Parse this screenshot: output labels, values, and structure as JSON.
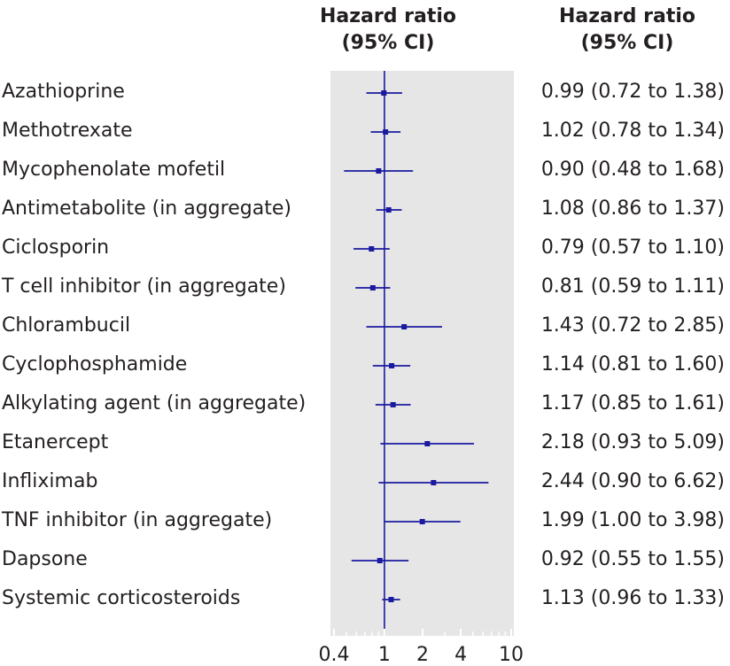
{
  "header": {
    "plot_title_line1": "Hazard ratio",
    "plot_title_line2": "(95% CI)",
    "ci_title_line1": "Hazard ratio",
    "ci_title_line2": "(95% CI)"
  },
  "colors": {
    "marker": "#1a1aa0",
    "panel": "#e6e6e6",
    "text": "#231f20"
  },
  "chart_data": {
    "type": "forest",
    "xscale": "log",
    "xlim": [
      0.4,
      10
    ],
    "reference_line": 1,
    "xticks": [
      0.4,
      1,
      2,
      4,
      10
    ],
    "xtick_labels": [
      "0.4",
      "1",
      "2",
      "4",
      "10"
    ],
    "rows": [
      {
        "label": "Azathioprine",
        "hr": 0.99,
        "lo": 0.72,
        "hi": 1.38,
        "ci_text": "0.99 (0.72 to 1.38)"
      },
      {
        "label": "Methotrexate",
        "hr": 1.02,
        "lo": 0.78,
        "hi": 1.34,
        "ci_text": "1.02 (0.78 to 1.34)"
      },
      {
        "label": "Mycophenolate mofetil",
        "hr": 0.9,
        "lo": 0.48,
        "hi": 1.68,
        "ci_text": "0.90 (0.48 to 1.68)"
      },
      {
        "label": "Antimetabolite (in aggregate)",
        "hr": 1.08,
        "lo": 0.86,
        "hi": 1.37,
        "ci_text": "1.08 (0.86 to 1.37)"
      },
      {
        "label": "Ciclosporin",
        "hr": 0.79,
        "lo": 0.57,
        "hi": 1.1,
        "ci_text": "0.79 (0.57 to 1.10)"
      },
      {
        "label": "T cell inhibitor (in aggregate)",
        "hr": 0.81,
        "lo": 0.59,
        "hi": 1.11,
        "ci_text": "0.81 (0.59 to 1.11)"
      },
      {
        "label": "Chlorambucil",
        "hr": 1.43,
        "lo": 0.72,
        "hi": 2.85,
        "ci_text": "1.43 (0.72 to 2.85)"
      },
      {
        "label": "Cyclophosphamide",
        "hr": 1.14,
        "lo": 0.81,
        "hi": 1.6,
        "ci_text": "1.14 (0.81 to 1.60)"
      },
      {
        "label": "Alkylating agent (in aggregate)",
        "hr": 1.17,
        "lo": 0.85,
        "hi": 1.61,
        "ci_text": "1.17 (0.85 to 1.61)"
      },
      {
        "label": "Etanercept",
        "hr": 2.18,
        "lo": 0.93,
        "hi": 5.09,
        "ci_text": "2.18 (0.93 to 5.09)"
      },
      {
        "label": "Infliximab",
        "hr": 2.44,
        "lo": 0.9,
        "hi": 6.62,
        "ci_text": "2.44 (0.90 to 6.62)"
      },
      {
        "label": "TNF inhibitor (in aggregate)",
        "hr": 1.99,
        "lo": 1.0,
        "hi": 3.98,
        "ci_text": "1.99 (1.00 to 3.98)"
      },
      {
        "label": "Dapsone",
        "hr": 0.92,
        "lo": 0.55,
        "hi": 1.55,
        "ci_text": "0.92 (0.55 to 1.55)"
      },
      {
        "label": "Systemic corticosteroids",
        "hr": 1.13,
        "lo": 0.96,
        "hi": 1.33,
        "ci_text": "1.13 (0.96 to 1.33)"
      }
    ]
  }
}
